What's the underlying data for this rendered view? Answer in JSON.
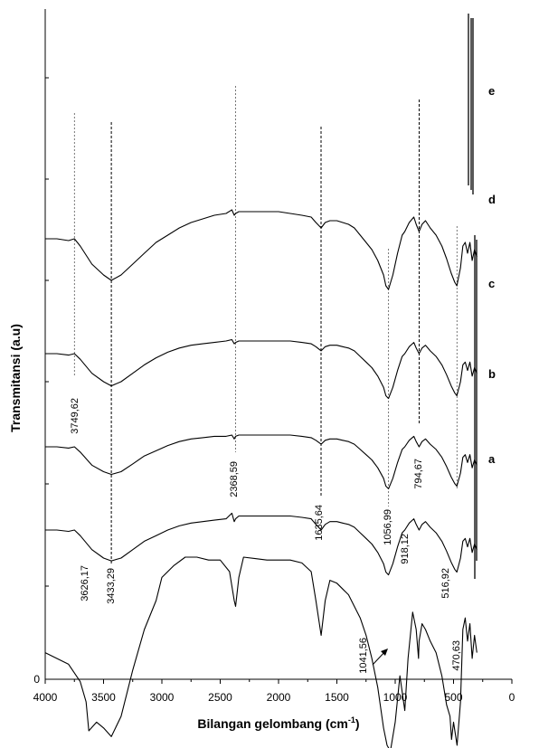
{
  "chart_data": {
    "type": "line",
    "title": "",
    "xlabel": "Bilangan gelombang (cm",
    "xlabel_sup": "-1",
    "xlabel_end": ")",
    "ylabel": "Transmitansi (a.u)",
    "xlim": [
      4000,
      0
    ],
    "x_reversed": true,
    "x_ticks": [
      4000,
      3500,
      3000,
      2500,
      2000,
      1500,
      1000,
      500,
      0
    ],
    "y_ticks": [
      0
    ],
    "grid": false,
    "legend": "none",
    "series": [
      {
        "name": "a",
        "offset": 0.0,
        "x": [
          4000,
          3900,
          3800,
          3700,
          3650,
          3626,
          3560,
          3500,
          3433,
          3350,
          3250,
          3150,
          3050,
          3000,
          2900,
          2800,
          2700,
          2600,
          2500,
          2420,
          2380,
          2368,
          2340,
          2300,
          2200,
          2100,
          2000,
          1900,
          1800,
          1720,
          1680,
          1635,
          1600,
          1560,
          1500,
          1450,
          1400,
          1350,
          1300,
          1250,
          1200,
          1150,
          1100,
          1070,
          1041,
          1000,
          960,
          918,
          890,
          850,
          820,
          800,
          795,
          770,
          740,
          700,
          650,
          600,
          560,
          530,
          517,
          500,
          470,
          440,
          420,
          400,
          380,
          360,
          340,
          320,
          300
        ],
        "y": [
          62,
          60,
          58,
          52,
          45,
          35,
          38,
          36,
          33,
          40,
          56,
          70,
          80,
          88,
          92,
          95,
          95,
          94,
          94,
          90,
          80,
          78,
          88,
          95,
          94.5,
          94,
          94,
          94,
          93,
          90,
          80,
          68,
          80,
          87,
          86,
          84,
          82,
          78,
          74,
          68,
          60,
          50,
          36,
          30,
          28,
          38,
          54,
          42,
          60,
          76,
          70,
          60,
          66,
          72,
          70,
          66,
          62,
          54,
          44,
          40,
          32,
          38,
          30,
          45,
          70,
          74,
          66,
          72,
          60,
          68,
          62
        ]
      },
      {
        "name": "b",
        "offset": 1.0,
        "x": [
          4000,
          3900,
          3800,
          3750,
          3700,
          3600,
          3500,
          3433,
          3350,
          3250,
          3150,
          3050,
          2950,
          2850,
          2750,
          2650,
          2550,
          2450,
          2400,
          2380,
          2368,
          2340,
          2300,
          2200,
          2100,
          2000,
          1900,
          1800,
          1720,
          1680,
          1635,
          1600,
          1560,
          1500,
          1450,
          1400,
          1350,
          1300,
          1250,
          1200,
          1150,
          1100,
          1080,
          1057,
          1020,
          980,
          940,
          918,
          880,
          840,
          820,
          795,
          770,
          740,
          700,
          650,
          600,
          560,
          520,
          490,
          471,
          440,
          420,
          400,
          380,
          360,
          340,
          320,
          300
        ],
        "y": [
          80,
          80,
          79,
          80,
          76,
          66,
          60,
          58,
          60,
          66,
          72,
          76,
          80,
          83,
          85,
          86,
          87,
          88,
          92,
          86,
          88,
          90,
          90,
          90,
          90,
          90,
          90,
          89,
          88,
          84,
          80,
          84,
          86,
          86,
          85,
          84,
          82,
          78,
          74,
          70,
          64,
          56,
          50,
          48,
          56,
          68,
          78,
          80,
          85,
          88,
          84,
          80,
          84,
          86,
          82,
          78,
          72,
          65,
          57,
          52,
          50,
          60,
          72,
          74,
          68,
          74,
          64,
          70,
          66
        ]
      },
      {
        "name": "c",
        "offset": 2.0,
        "x": [
          4000,
          3900,
          3800,
          3750,
          3700,
          3600,
          3500,
          3433,
          3350,
          3250,
          3150,
          3050,
          2950,
          2850,
          2750,
          2650,
          2550,
          2450,
          2400,
          2380,
          2368,
          2340,
          2300,
          2200,
          2100,
          2000,
          1900,
          1800,
          1720,
          1680,
          1635,
          1600,
          1560,
          1500,
          1450,
          1400,
          1350,
          1300,
          1250,
          1200,
          1150,
          1100,
          1080,
          1057,
          1020,
          980,
          940,
          918,
          880,
          840,
          820,
          795,
          770,
          740,
          700,
          650,
          600,
          560,
          520,
          490,
          471,
          440,
          420,
          400,
          380,
          360,
          340,
          320,
          300
        ],
        "y": [
          80,
          80,
          79,
          80,
          76,
          66,
          61,
          59,
          61,
          67,
          73,
          77,
          81,
          84,
          86,
          87,
          88,
          88,
          89,
          86,
          88,
          89,
          89,
          89,
          89,
          89,
          89,
          88,
          87,
          85,
          82,
          85,
          86,
          86,
          85,
          84,
          82,
          78,
          74,
          70,
          64,
          56,
          50,
          48,
          56,
          68,
          78,
          80,
          85,
          88,
          84,
          80,
          84,
          86,
          82,
          78,
          72,
          65,
          57,
          52,
          50,
          60,
          72,
          74,
          68,
          74,
          64,
          70,
          66
        ]
      },
      {
        "name": "d",
        "offset": 3.0,
        "x": [
          4000,
          3900,
          3800,
          3750,
          3700,
          3600,
          3500,
          3433,
          3350,
          3250,
          3150,
          3050,
          2950,
          2850,
          2750,
          2650,
          2550,
          2450,
          2400,
          2380,
          2368,
          2340,
          2300,
          2200,
          2100,
          2000,
          1900,
          1800,
          1720,
          1680,
          1635,
          1600,
          1560,
          1500,
          1450,
          1400,
          1350,
          1300,
          1250,
          1200,
          1150,
          1100,
          1080,
          1057,
          1020,
          980,
          940,
          918,
          880,
          840,
          820,
          795,
          770,
          740,
          700,
          650,
          600,
          560,
          520,
          490,
          471,
          440,
          420,
          400,
          380,
          360,
          340,
          320,
          300
        ],
        "y": [
          80,
          80,
          79,
          80,
          76,
          66,
          60,
          57,
          60,
          66,
          72,
          77,
          81,
          84,
          86,
          87,
          88,
          89,
          90,
          87,
          88,
          89,
          89,
          89,
          89,
          89,
          89,
          88,
          87,
          85,
          82,
          85,
          86,
          86,
          85,
          84,
          82,
          78,
          74,
          70,
          64,
          56,
          50,
          48,
          56,
          68,
          78,
          80,
          85,
          88,
          84,
          80,
          84,
          86,
          82,
          78,
          72,
          65,
          57,
          52,
          50,
          60,
          72,
          74,
          68,
          74,
          64,
          70,
          66
        ]
      },
      {
        "name": "e",
        "offset": 4.0,
        "x": [
          4000,
          3900,
          3800,
          3750,
          3700,
          3600,
          3500,
          3433,
          3350,
          3250,
          3150,
          3050,
          2950,
          2850,
          2750,
          2650,
          2550,
          2450,
          2400,
          2380,
          2368,
          2340,
          2300,
          2200,
          2100,
          2000,
          1900,
          1800,
          1720,
          1680,
          1635,
          1600,
          1560,
          1500,
          1450,
          1400,
          1350,
          1300,
          1250,
          1200,
          1150,
          1100,
          1080,
          1057,
          1020,
          980,
          940,
          918,
          880,
          840,
          820,
          795,
          770,
          740,
          700,
          650,
          600,
          560,
          520,
          490,
          471,
          440,
          420,
          400,
          380,
          360,
          340,
          320,
          300
        ],
        "y": [
          78,
          78,
          77,
          78,
          74,
          64,
          58,
          55,
          58,
          64,
          70,
          76,
          80,
          84,
          87,
          89,
          91,
          92,
          94,
          91,
          92,
          93,
          93,
          93,
          93,
          93,
          92,
          91,
          90,
          87,
          84,
          87,
          88,
          88,
          87,
          86,
          84,
          80,
          76,
          72,
          66,
          58,
          52,
          50,
          58,
          70,
          80,
          82,
          87,
          90,
          86,
          82,
          86,
          88,
          84,
          80,
          74,
          67,
          59,
          54,
          52,
          62,
          74,
          76,
          70,
          76,
          66,
          72,
          68
        ]
      }
    ],
    "annotations": [
      {
        "label": "3749,62",
        "x": 3749.62
      },
      {
        "label": "3626,17",
        "x": 3626.17
      },
      {
        "label": "3433,29",
        "x": 3433.29
      },
      {
        "label": "2368,59",
        "x": 2368.59
      },
      {
        "label": "1635,64",
        "x": 1635.64
      },
      {
        "label": "1056,99",
        "x": 1056.99
      },
      {
        "label": "1041,56",
        "x": 1041.56
      },
      {
        "label": "918,12",
        "x": 918.12
      },
      {
        "label": "794,67",
        "x": 794.67
      },
      {
        "label": "516,92",
        "x": 516.92
      },
      {
        "label": "470,63",
        "x": 470.63
      }
    ],
    "dashed_guides": [
      3749.62,
      3433.29,
      2368.59,
      1635.64,
      1056.99,
      794.67,
      470.63
    ]
  }
}
